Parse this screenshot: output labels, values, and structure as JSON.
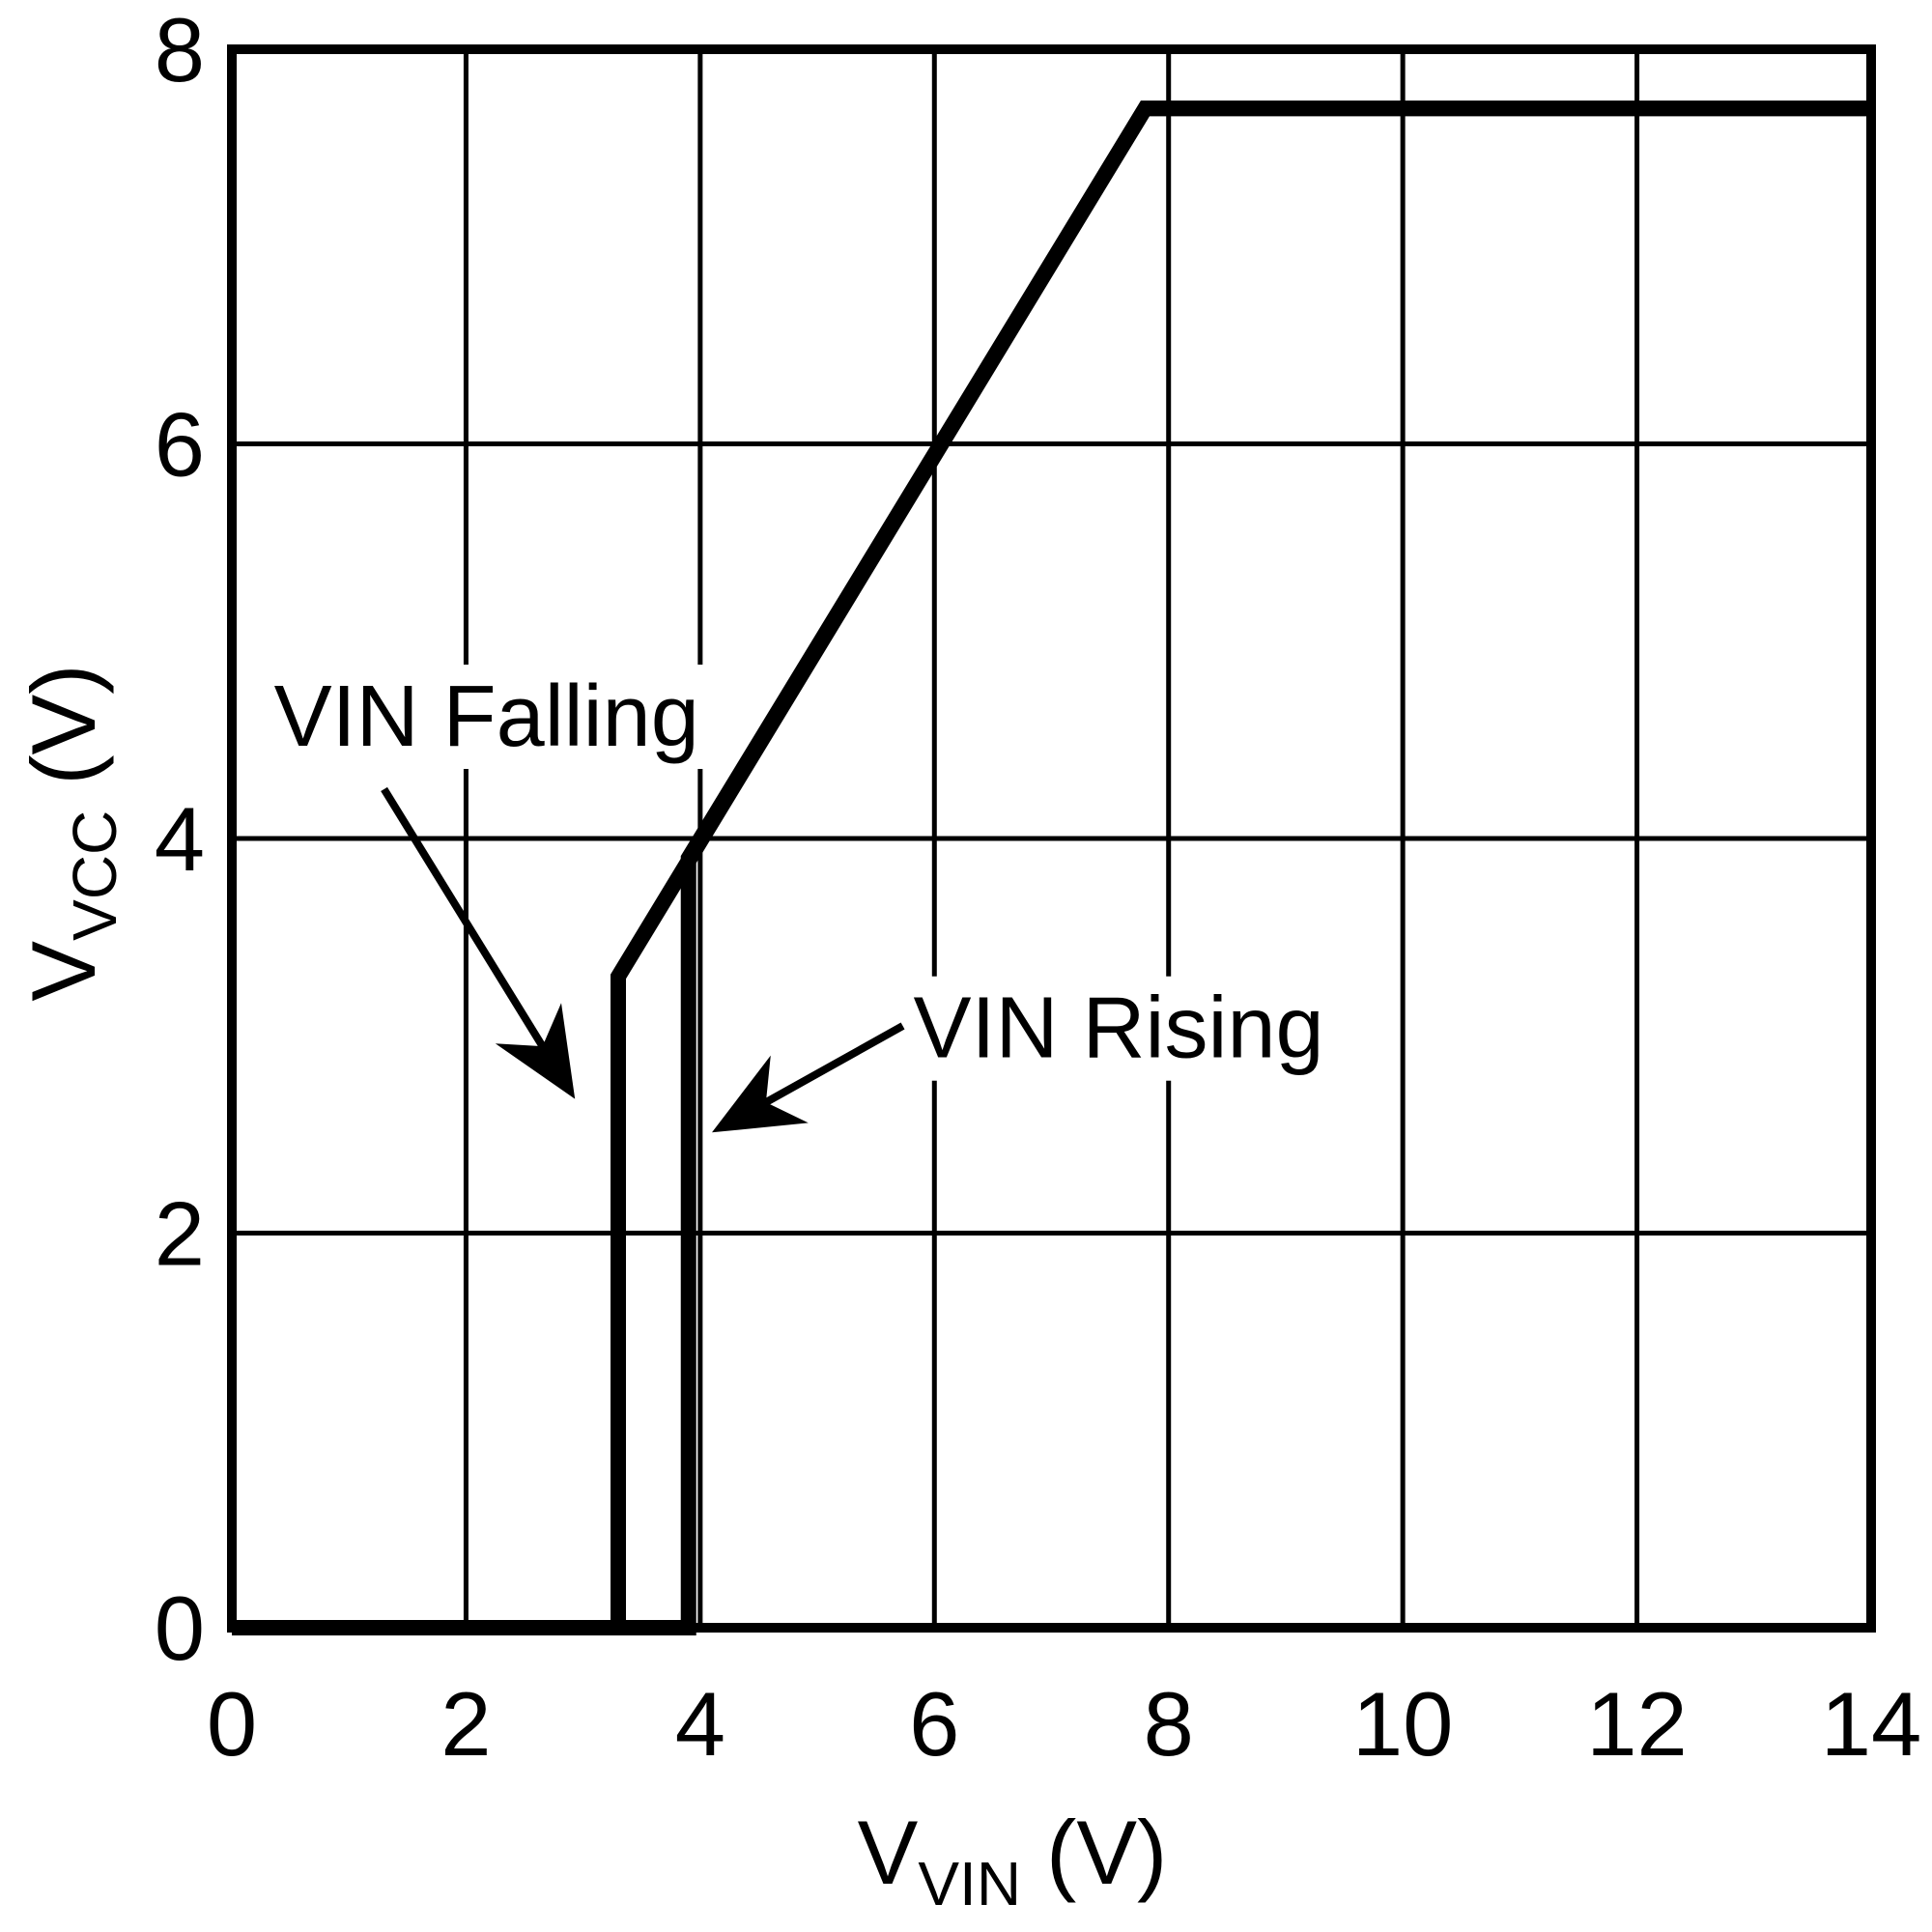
{
  "chart_data": {
    "type": "line",
    "title": "",
    "xlabel": {
      "base": "V",
      "sub": "VIN",
      "unit": "(V)"
    },
    "ylabel": {
      "base": "V",
      "sub": "VCC",
      "unit": "(V)"
    },
    "xlim": [
      0,
      14
    ],
    "ylim": [
      0,
      8
    ],
    "xticks": [
      0,
      2,
      4,
      6,
      8,
      10,
      12,
      14
    ],
    "yticks": [
      0,
      2,
      4,
      6,
      8
    ],
    "grid": true,
    "legend_position": "none",
    "line_color": "#000000",
    "grid_color": "#000000",
    "background_color": "#ffffff",
    "series": [
      {
        "name": "VIN Rising",
        "points": [
          [
            0,
            0
          ],
          [
            3.9,
            0
          ],
          [
            3.9,
            3.9
          ],
          [
            7.8,
            7.7
          ],
          [
            14,
            7.7
          ]
        ]
      },
      {
        "name": "VIN Falling",
        "points": [
          [
            14,
            7.7
          ],
          [
            7.8,
            7.7
          ],
          [
            3.3,
            3.3
          ],
          [
            3.3,
            0
          ],
          [
            0,
            0
          ]
        ]
      }
    ],
    "annotations": [
      {
        "label": "VIN Falling",
        "text_pos": [
          0.36,
          4.47
        ],
        "arrow_start": [
          1.3,
          4.25
        ],
        "arrow_tip": [
          2.93,
          2.68
        ]
      },
      {
        "label": "VIN Rising",
        "text_pos": [
          5.82,
          2.89
        ],
        "arrow_start": [
          5.73,
          3.05
        ],
        "arrow_tip": [
          4.1,
          2.51
        ]
      }
    ]
  }
}
